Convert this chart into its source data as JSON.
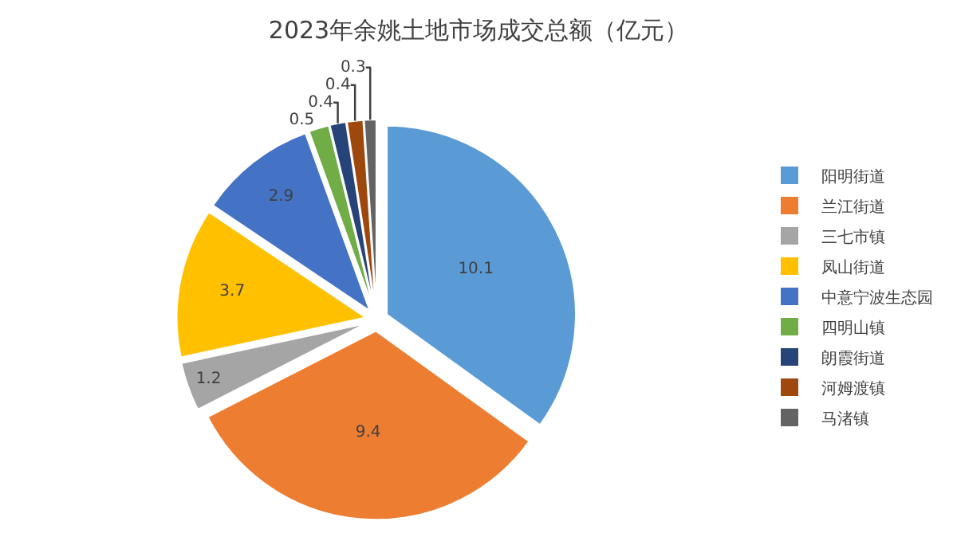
{
  "chart_data": {
    "type": "pie",
    "title": "2023年余姚土地市场成交总额（亿元）",
    "categories": [
      "阳明街道",
      "兰江街道",
      "三七市镇",
      "凤山街道",
      "中意宁波生态园",
      "四明山镇",
      "朗霞街道",
      "河姆渡镇",
      "马渚镇"
    ],
    "values": [
      10.1,
      9.4,
      1.2,
      3.7,
      2.9,
      0.5,
      0.4,
      0.4,
      0.3
    ],
    "colors": [
      "#5b9bd5",
      "#ed7d31",
      "#a5a5a5",
      "#ffc000",
      "#4472c4",
      "#70ad47",
      "#264478",
      "#9e480e",
      "#636363"
    ],
    "data_labels": true,
    "legend": "right"
  }
}
